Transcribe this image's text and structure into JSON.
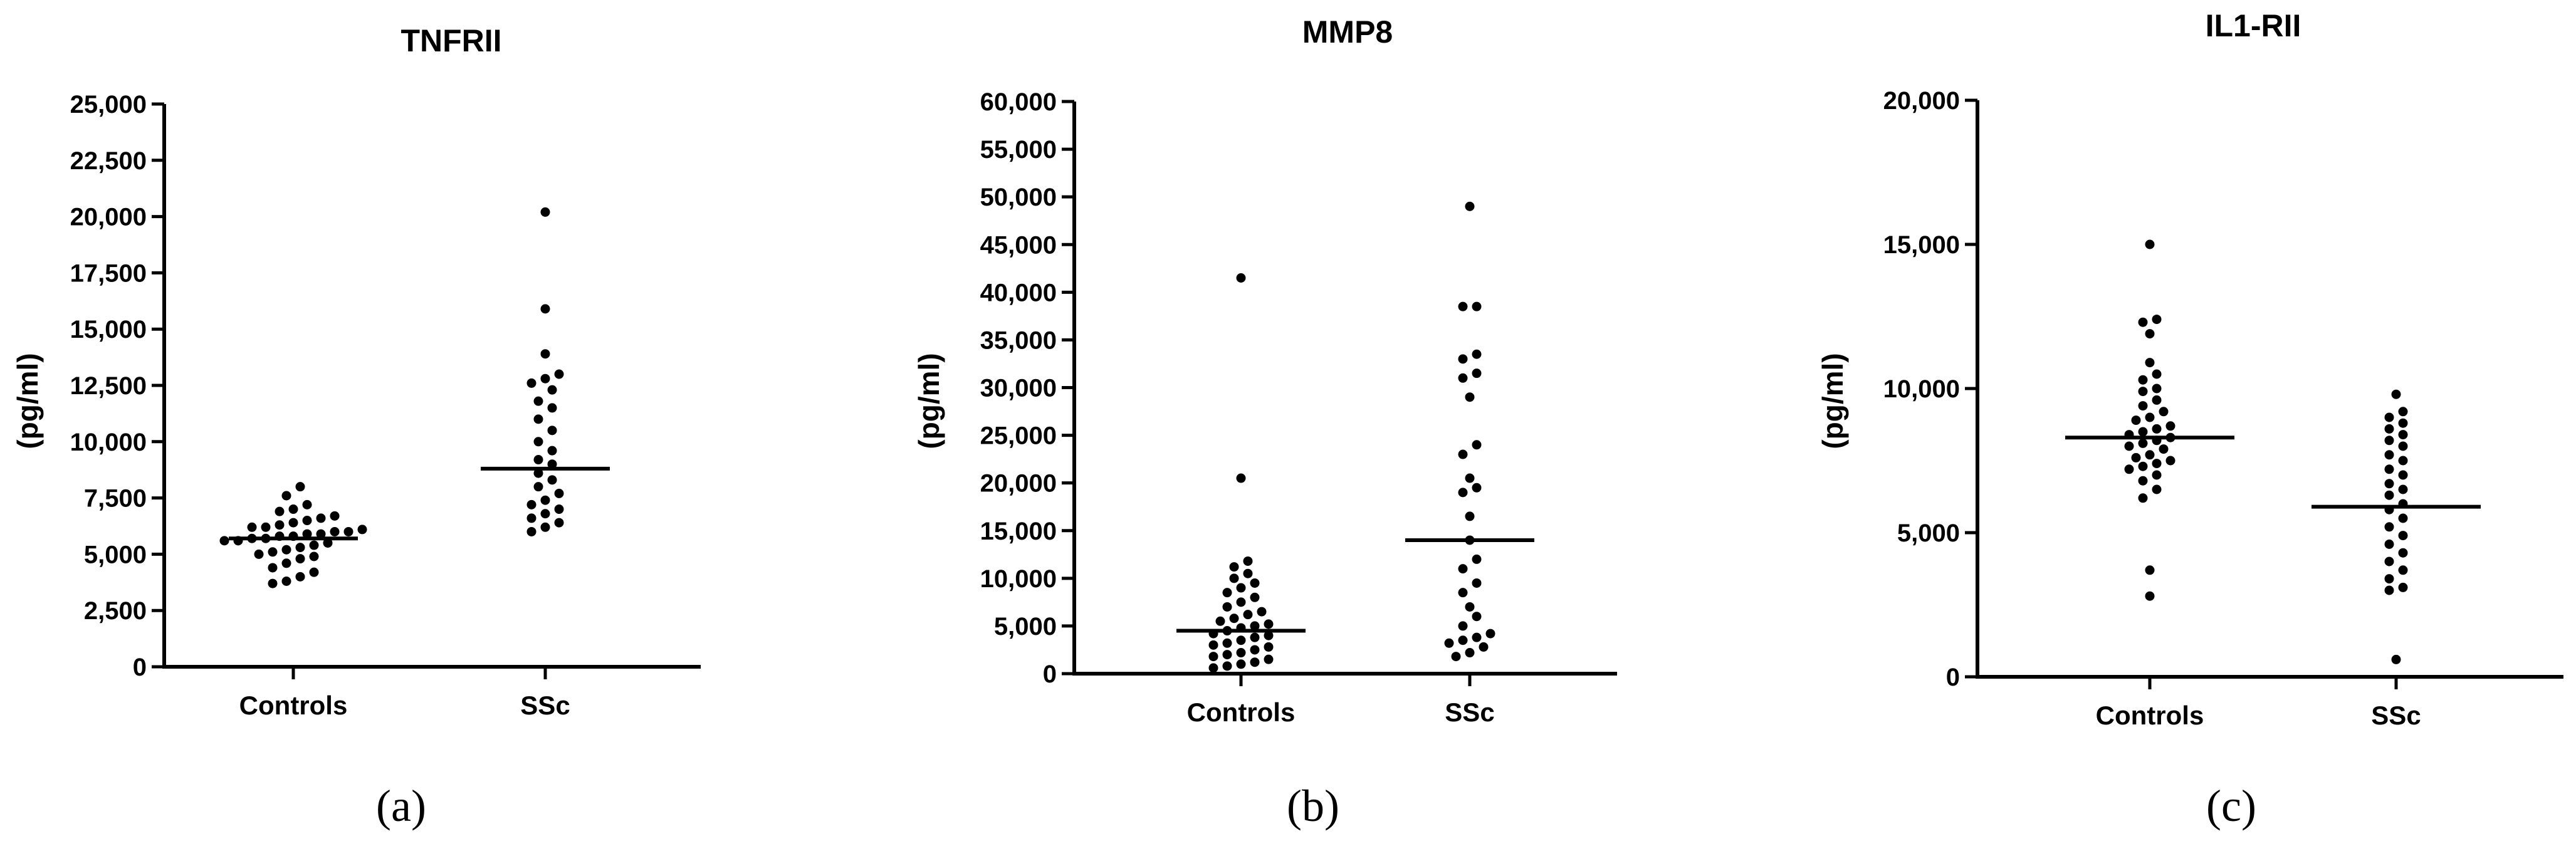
{
  "chart_data": [
    {
      "type": "scatter",
      "title": "TNFRII",
      "ylabel": "(pg/ml)",
      "caption": "(a)",
      "categories": [
        "Controls",
        "SSc"
      ],
      "ylim": [
        0,
        25000
      ],
      "yticks": [
        "0",
        "2,500",
        "5,000",
        "7,500",
        "10,000",
        "12,500",
        "15,000",
        "17,500",
        "20,000",
        "22,500",
        "25,000"
      ],
      "ytick_values": [
        0,
        2500,
        5000,
        7500,
        10000,
        12500,
        15000,
        17500,
        20000,
        22500,
        25000
      ],
      "grid": false,
      "series": [
        {
          "category": "Controls",
          "median": 5700,
          "values": [
            8000,
            7600,
            7200,
            7000,
            6900,
            6700,
            6600,
            6500,
            6400,
            6300,
            6200,
            6200,
            6100,
            6000,
            6000,
            5900,
            5900,
            5800,
            5800,
            5700,
            5700,
            5600,
            5600,
            5500,
            5400,
            5300,
            5200,
            5100,
            5000,
            4900,
            4800,
            4600,
            4400,
            4200,
            4000,
            3800,
            3700
          ]
        },
        {
          "category": "SSc",
          "median": 8800,
          "values": [
            20200,
            15900,
            13900,
            13000,
            12800,
            12600,
            12300,
            11800,
            11500,
            11000,
            10500,
            10000,
            9600,
            9200,
            9000,
            8600,
            8300,
            8000,
            7700,
            7400,
            7200,
            7000,
            6800,
            6600,
            6400,
            6200,
            6000
          ]
        }
      ]
    },
    {
      "type": "scatter",
      "title": "MMP8",
      "ylabel": "(pg/ml)",
      "caption": "(b)",
      "categories": [
        "Controls",
        "SSc"
      ],
      "ylim": [
        0,
        60000
      ],
      "yticks": [
        "0",
        "5,000",
        "10,000",
        "15,000",
        "20,000",
        "25,000",
        "30,000",
        "35,000",
        "40,000",
        "45,000",
        "50,000",
        "55,000",
        "60,000"
      ],
      "ytick_values": [
        0,
        5000,
        10000,
        15000,
        20000,
        25000,
        30000,
        35000,
        40000,
        45000,
        50000,
        55000,
        60000
      ],
      "grid": false,
      "series": [
        {
          "category": "Controls",
          "median": 4500,
          "values": [
            41500,
            20500,
            11800,
            11200,
            10500,
            10000,
            9500,
            9000,
            8500,
            8000,
            7500,
            7000,
            6500,
            6200,
            5800,
            5500,
            5200,
            5000,
            4800,
            4500,
            4200,
            4000,
            3800,
            3500,
            3200,
            3000,
            2800,
            2500,
            2200,
            2000,
            1800,
            1500,
            1200,
            1000,
            800,
            600
          ]
        },
        {
          "category": "SSc",
          "median": 14000,
          "values": [
            49000,
            38500,
            38500,
            33500,
            33000,
            31500,
            31000,
            29000,
            24000,
            23000,
            20500,
            19500,
            19000,
            16500,
            14000,
            12000,
            11000,
            9500,
            8500,
            7000,
            6000,
            5000,
            4200,
            3800,
            3500,
            3200,
            2800,
            2200,
            1800
          ]
        }
      ]
    },
    {
      "type": "scatter",
      "title": "IL1-RII",
      "ylabel": "(pg/ml)",
      "caption": "(c)",
      "categories": [
        "Controls",
        "SSc"
      ],
      "ylim": [
        0,
        20000
      ],
      "yticks": [
        "0",
        "5,000",
        "10,000",
        "15,000",
        "20,000"
      ],
      "ytick_values": [
        0,
        5000,
        10000,
        15000,
        20000
      ],
      "grid": false,
      "series": [
        {
          "category": "Controls",
          "median": 8300,
          "values": [
            15000,
            12400,
            12300,
            11900,
            10900,
            10500,
            10300,
            10000,
            9900,
            9600,
            9400,
            9200,
            9000,
            8900,
            8700,
            8600,
            8500,
            8400,
            8300,
            8200,
            8100,
            8000,
            7900,
            7700,
            7600,
            7500,
            7400,
            7300,
            7200,
            7000,
            6800,
            6500,
            6200,
            3700,
            2800
          ]
        },
        {
          "category": "SSc",
          "median": 5900,
          "values": [
            9800,
            9200,
            9000,
            8800,
            8600,
            8400,
            8200,
            8000,
            7700,
            7500,
            7200,
            7000,
            6700,
            6500,
            6300,
            6000,
            5800,
            5500,
            5200,
            4900,
            4600,
            4300,
            4000,
            3700,
            3400,
            3100,
            3000,
            600
          ]
        }
      ]
    }
  ]
}
